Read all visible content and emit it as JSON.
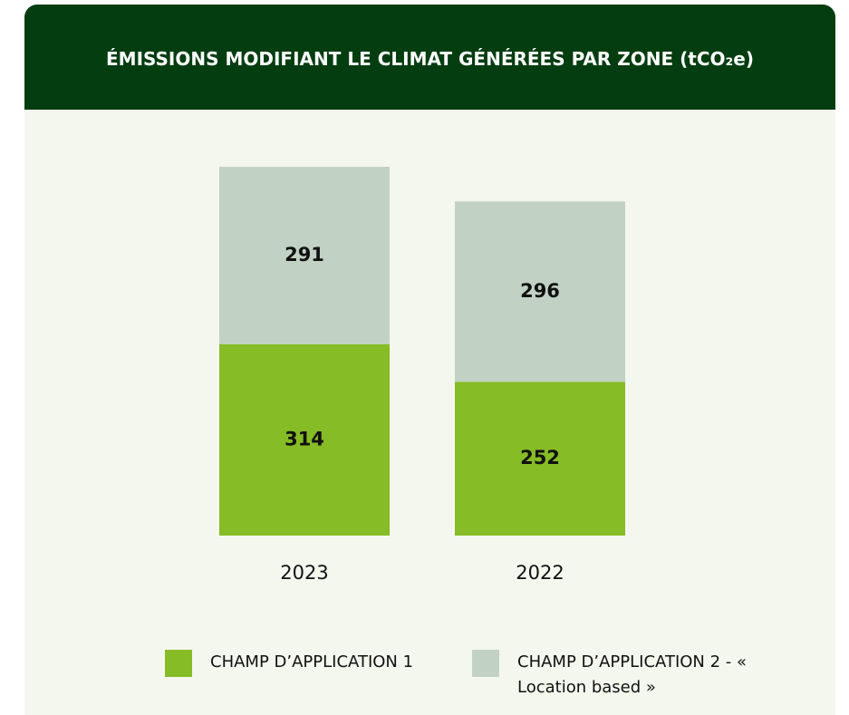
{
  "chart_data": {
    "type": "stacked_bar",
    "title": "ÉMISSIONS MODIFIANT LE CLIMAT GÉNÉRÉES PAR ZONE (tCO₂e)",
    "categories": [
      "2023",
      "2022"
    ],
    "series": [
      {
        "name": "CHAMP D’APPLICATION 1",
        "color": "#86bc25",
        "values": [
          314,
          252
        ]
      },
      {
        "name": "CHAMP D’APPLICATION 2 - « Location based »",
        "color": "#c1d2c4",
        "values": [
          291,
          296
        ]
      }
    ]
  }
}
